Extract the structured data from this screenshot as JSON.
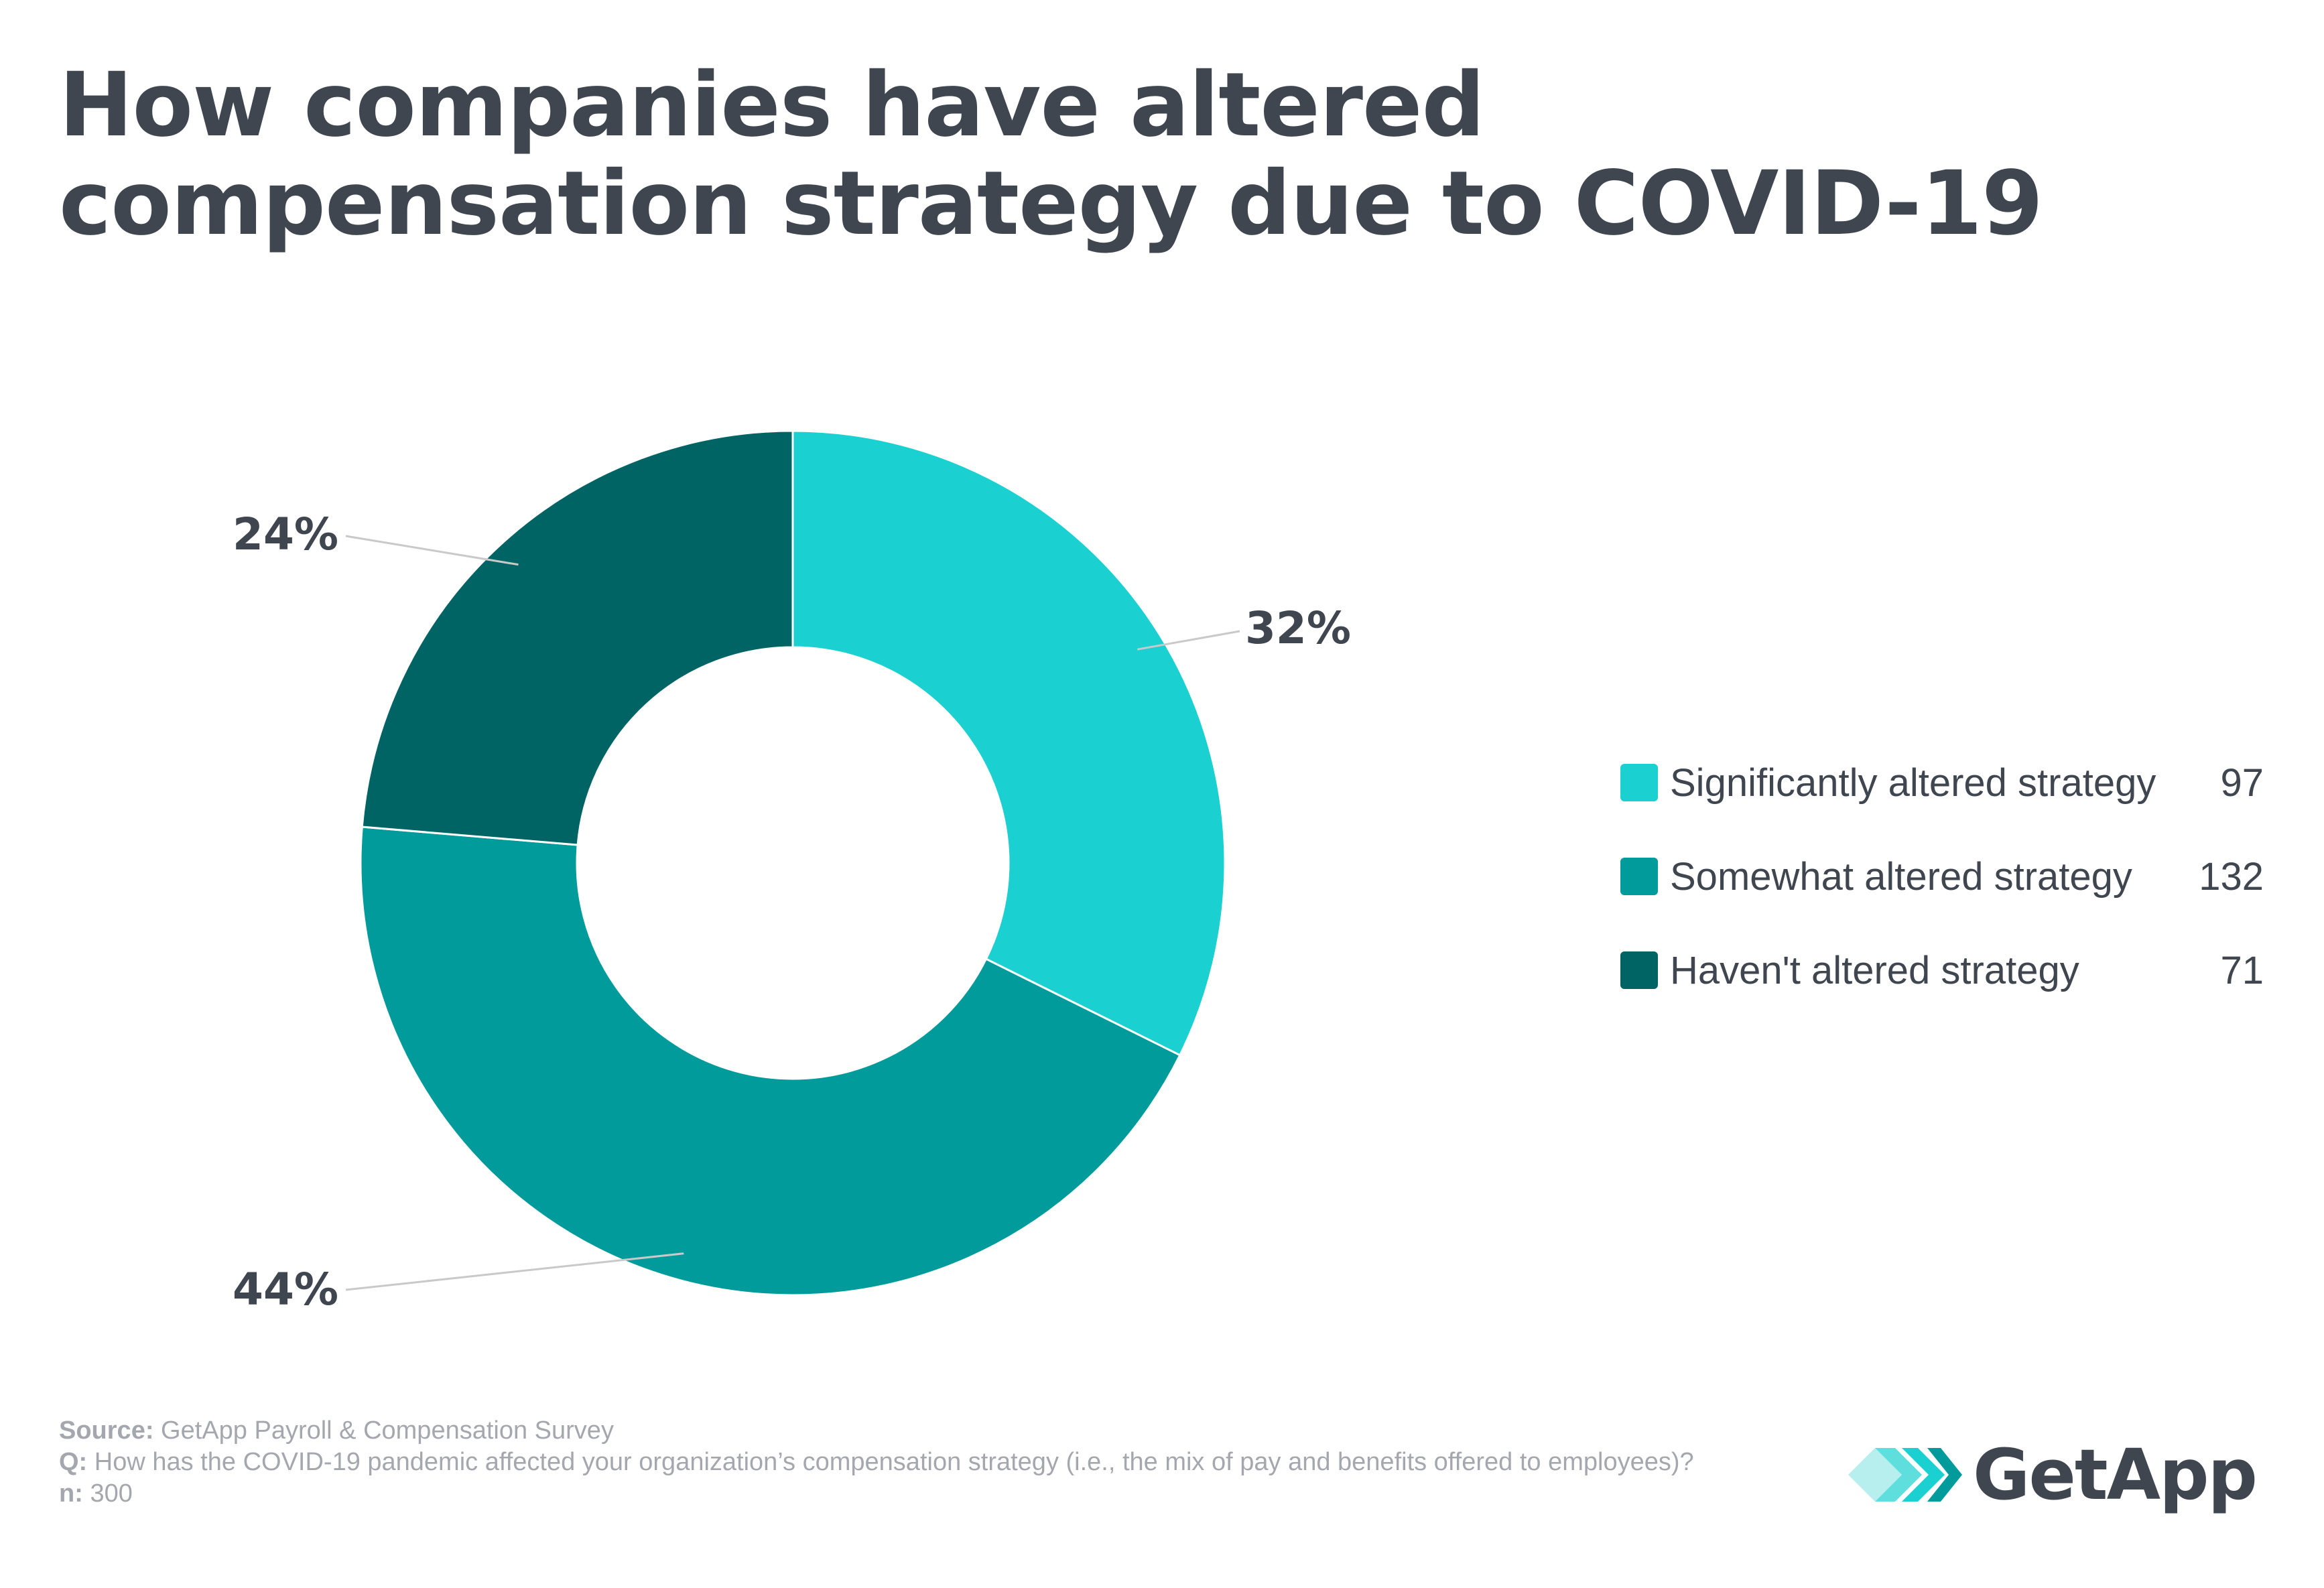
{
  "title": {
    "line1": "How companies have altered",
    "line2": "compensation strategy due to COVID-19"
  },
  "chart_data": {
    "type": "pie",
    "donut": true,
    "title": "How companies have altered compensation strategy due to COVID-19",
    "categories": [
      "Significantly altered strategy",
      "Somewhat altered strategy",
      "Haven't altered strategy"
    ],
    "values": [
      97,
      132,
      71
    ],
    "percent_labels": [
      "32%",
      "44%",
      "24%"
    ],
    "colors": [
      "#1ad0d1",
      "#019b9b",
      "#006464"
    ],
    "legend_position": "right",
    "total": 300
  },
  "legend": {
    "items": [
      {
        "label": "Significantly altered strategy",
        "value": "97",
        "color": "#1ad0d1"
      },
      {
        "label": "Somewhat altered strategy",
        "value": "132",
        "color": "#019b9b"
      },
      {
        "label": "Haven't altered strategy",
        "value": "71",
        "color": "#006464"
      }
    ]
  },
  "footer": {
    "source_label": "Source:",
    "source_text": "GetApp Payroll & Compensation Survey",
    "q_label": "Q:",
    "q_text": "How has the COVID-19 pandemic affected your organization’s compensation strategy (i.e., the mix of pay and benefits offered to employees)?",
    "n_label": "n:",
    "n_text": "300"
  },
  "brand": {
    "name": "GetApp",
    "icon": "getapp-chevrons-icon",
    "accent": "#1ad0d1"
  }
}
